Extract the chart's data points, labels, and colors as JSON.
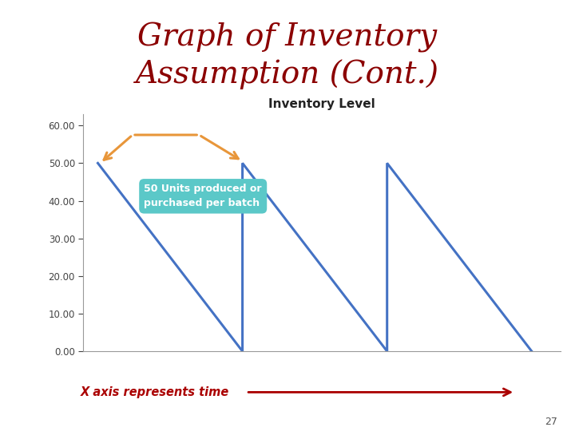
{
  "title": "Graph of Inventory\nAssumption (Cont.)",
  "chart_title": "Inventory Level",
  "ylabel_ticks": [
    "0.00",
    "10.00",
    "20.00",
    "30.00",
    "40.00",
    "50.00",
    "60.00"
  ],
  "y_values": [
    0,
    10,
    20,
    30,
    40,
    50,
    60
  ],
  "line_color": "#4472C4",
  "line_width": 2.2,
  "line_x": [
    0,
    5,
    5,
    10,
    10,
    15
  ],
  "line_y": [
    50,
    0,
    50,
    0,
    50,
    0
  ],
  "annotation_text": "50 Units produced or\npurchased per batch",
  "annotation_box_color": "#5BC8C8",
  "annotation_text_color": "white",
  "arrow_color": "#E8963A",
  "x_axis_label": "X axis represents time",
  "x_axis_label_color": "#AA0000",
  "page_number": "27",
  "background_color": "#FFFFFF",
  "title_color": "#8B0000",
  "title_fontsize": 28,
  "chart_title_fontsize": 11,
  "tick_fontsize": 8.5,
  "annotation_fontsize": 9
}
